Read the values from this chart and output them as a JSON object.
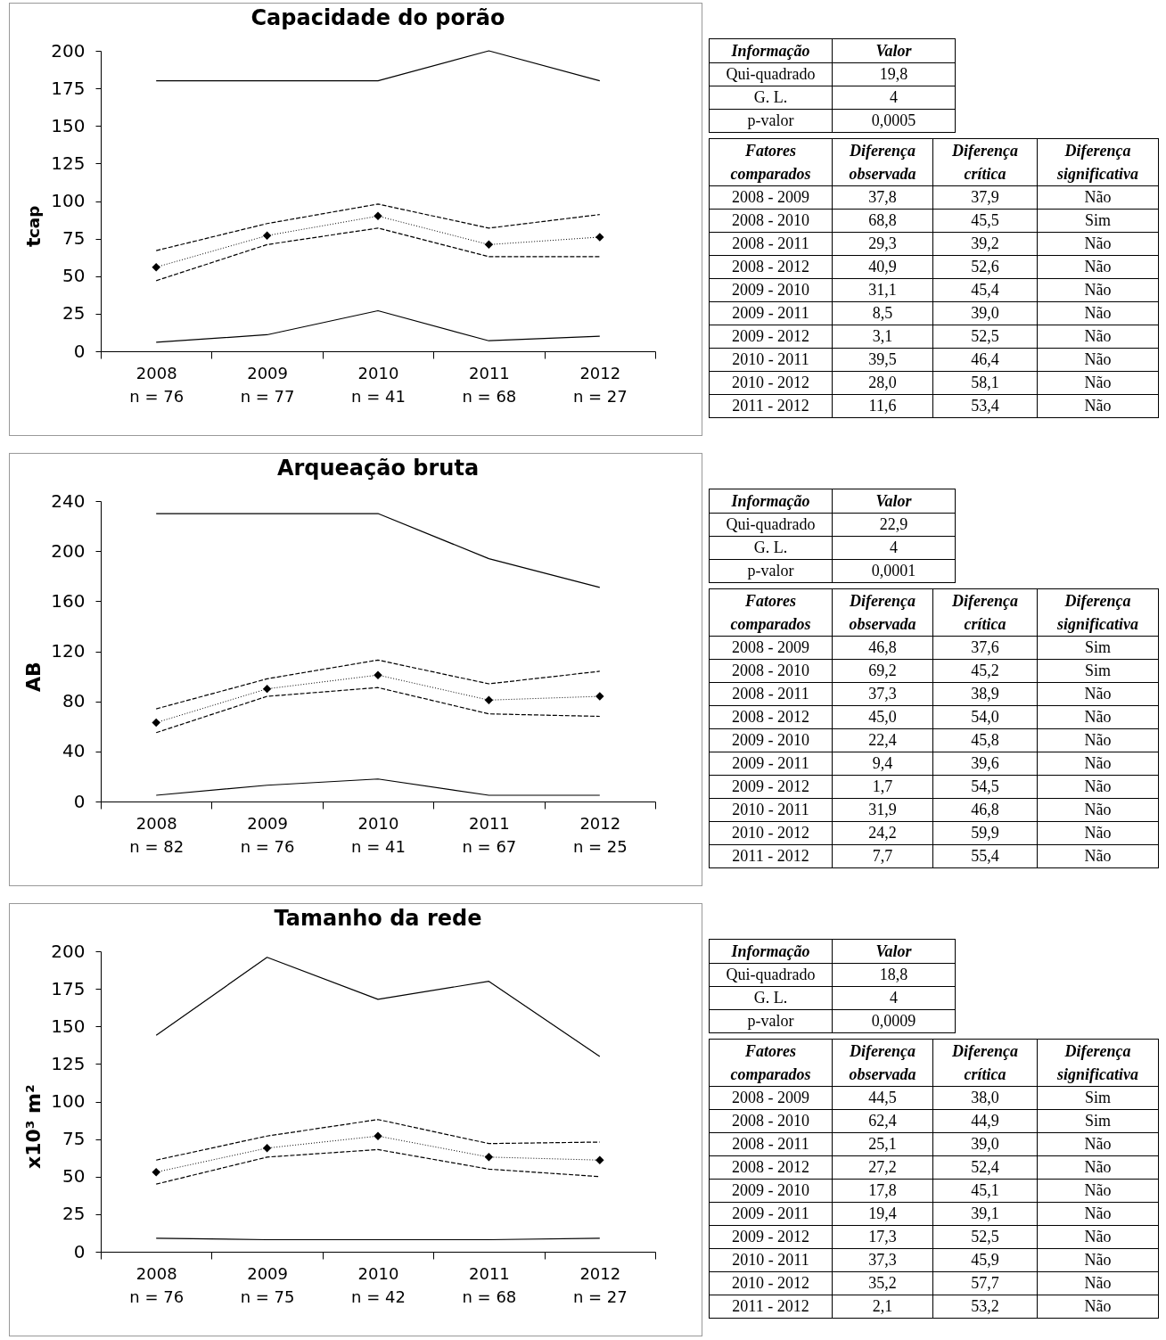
{
  "chart_data": [
    {
      "type": "line",
      "title": "Capacidade do porão",
      "ylabel": "t$_{cap}$",
      "categories": [
        "2008\nn = 76",
        "2009\nn = 77",
        "2010\nn = 41",
        "2011\nn = 68",
        "2012\nn = 27"
      ],
      "ylim": [
        0,
        200
      ],
      "yticks": [
        0,
        25,
        50,
        75,
        100,
        125,
        150,
        175,
        200
      ],
      "series": [
        {
          "color": "#000000",
          "line_style": "solid",
          "values": [
            180,
            180,
            180,
            200,
            180
          ]
        },
        {
          "color": "#000000",
          "line_style": "dashed",
          "values": [
            67,
            85,
            98,
            82,
            91
          ]
        },
        {
          "color": "#000000",
          "line_style": "dotted",
          "marker": "diamond",
          "values": [
            56,
            77,
            90,
            71,
            76
          ]
        },
        {
          "color": "#000000",
          "line_style": "dashed",
          "values": [
            47,
            71,
            82,
            63,
            63
          ]
        },
        {
          "color": "#000000",
          "line_style": "solid",
          "values": [
            6,
            11,
            27,
            7,
            10
          ]
        }
      ]
    },
    {
      "type": "other",
      "categories": [
        "Informação",
        "Valor"
      ],
      "cell_labels": [
        [
          "Qui-quadrado",
          "19,8"
        ],
        [
          "G. L.",
          "4"
        ],
        [
          "p-valor",
          "0,0005"
        ]
      ]
    },
    {
      "type": "other",
      "categories": [
        "Fatores comparados",
        "Diferença observada",
        "Diferença crítica",
        "Diferença significativa"
      ],
      "cell_labels": [
        [
          "2008 - 2009",
          "37,8",
          "37,9",
          "Não"
        ],
        [
          "2008 - 2010",
          "68,8",
          "45,5",
          "Sim"
        ],
        [
          "2008 - 2011",
          "29,3",
          "39,2",
          "Não"
        ],
        [
          "2008 - 2012",
          "40,9",
          "52,6",
          "Não"
        ],
        [
          "2009 - 2010",
          "31,1",
          "45,4",
          "Não"
        ],
        [
          "2009 - 2011",
          "8,5",
          "39,0",
          "Não"
        ],
        [
          "2009 - 2012",
          "3,1",
          "52,5",
          "Não"
        ],
        [
          "2010 - 2011",
          "39,5",
          "46,4",
          "Não"
        ],
        [
          "2010 - 2012",
          "28,0",
          "58,1",
          "Não"
        ],
        [
          "2011 - 2012",
          "11,6",
          "53,4",
          "Não"
        ]
      ]
    },
    {
      "type": "line",
      "title": "Arqueação bruta",
      "ylabel": "AB",
      "categories": [
        "2008\nn = 82",
        "2009\nn = 76",
        "2010\nn = 41",
        "2011\nn = 67",
        "2012\nn = 25"
      ],
      "ylim": [
        0,
        240
      ],
      "yticks": [
        0,
        40,
        80,
        120,
        160,
        200,
        240
      ],
      "series": [
        {
          "color": "#000000",
          "line_style": "solid",
          "values": [
            230,
            230,
            230,
            194,
            171
          ]
        },
        {
          "color": "#000000",
          "line_style": "dashed",
          "values": [
            74,
            98,
            113,
            94,
            104
          ]
        },
        {
          "color": "#000000",
          "line_style": "dotted",
          "marker": "diamond",
          "values": [
            63,
            90,
            101,
            81,
            84
          ]
        },
        {
          "color": "#000000",
          "line_style": "dashed",
          "values": [
            55,
            84,
            91,
            70,
            68
          ]
        },
        {
          "color": "#000000",
          "line_style": "solid",
          "values": [
            5,
            13,
            18,
            5,
            5
          ]
        }
      ]
    },
    {
      "type": "other",
      "categories": [
        "Informação",
        "Valor"
      ],
      "cell_labels": [
        [
          "Qui-quadrado",
          "22,9"
        ],
        [
          "G. L.",
          "4"
        ],
        [
          "p-valor",
          "0,0001"
        ]
      ]
    },
    {
      "type": "other",
      "categories": [
        "Fatores comparados",
        "Diferença observada",
        "Diferença crítica",
        "Diferença significativa"
      ],
      "cell_labels": [
        [
          "2008 - 2009",
          "46,8",
          "37,6",
          "Sim"
        ],
        [
          "2008 - 2010",
          "69,2",
          "45,2",
          "Sim"
        ],
        [
          "2008 - 2011",
          "37,3",
          "38,9",
          "Não"
        ],
        [
          "2008 - 2012",
          "45,0",
          "54,0",
          "Não"
        ],
        [
          "2009 - 2010",
          "22,4",
          "45,8",
          "Não"
        ],
        [
          "2009 - 2011",
          "9,4",
          "39,6",
          "Não"
        ],
        [
          "2009 - 2012",
          "1,7",
          "54,5",
          "Não"
        ],
        [
          "2010 - 2011",
          "31,9",
          "46,8",
          "Não"
        ],
        [
          "2010 - 2012",
          "24,2",
          "59,9",
          "Não"
        ],
        [
          "2011 - 2012",
          "7,7",
          "55,4",
          "Não"
        ]
      ]
    },
    {
      "type": "line",
      "title": "Tamanho da rede",
      "ylabel": "x10³ m²",
      "categories": [
        "2008\nn = 76",
        "2009\nn = 75",
        "2010\nn = 42",
        "2011\nn = 68",
        "2012\nn = 27"
      ],
      "ylim": [
        0,
        200
      ],
      "yticks": [
        0,
        25,
        50,
        75,
        100,
        125,
        150,
        175,
        200
      ],
      "series": [
        {
          "color": "#000000",
          "line_style": "solid",
          "values": [
            144,
            196,
            168,
            180,
            130
          ]
        },
        {
          "color": "#000000",
          "line_style": "dashed",
          "values": [
            61,
            77,
            88,
            72,
            73
          ]
        },
        {
          "color": "#000000",
          "line_style": "dotted",
          "marker": "diamond",
          "values": [
            53,
            69,
            77,
            63,
            61
          ]
        },
        {
          "color": "#000000",
          "line_style": "dashed",
          "values": [
            45,
            63,
            68,
            55,
            50
          ]
        },
        {
          "color": "#000000",
          "line_style": "solid",
          "values": [
            9,
            8,
            8,
            8,
            9
          ]
        }
      ]
    },
    {
      "type": "other",
      "categories": [
        "Informação",
        "Valor"
      ],
      "cell_labels": [
        [
          "Qui-quadrado",
          "18,8"
        ],
        [
          "G. L.",
          "4"
        ],
        [
          "p-valor",
          "0,0009"
        ]
      ]
    },
    {
      "type": "other",
      "categories": [
        "Fatores comparados",
        "Diferença observada",
        "Diferença crítica",
        "Diferença significativa"
      ],
      "cell_labels": [
        [
          "2008 - 2009",
          "44,5",
          "38,0",
          "Sim"
        ],
        [
          "2008 - 2010",
          "62,4",
          "44,9",
          "Sim"
        ],
        [
          "2008 - 2011",
          "25,1",
          "39,0",
          "Não"
        ],
        [
          "2008 - 2012",
          "27,2",
          "52,4",
          "Não"
        ],
        [
          "2009 - 2010",
          "17,8",
          "45,1",
          "Não"
        ],
        [
          "2009 - 2011",
          "19,4",
          "39,1",
          "Não"
        ],
        [
          "2009 - 2012",
          "17,3",
          "52,5",
          "Não"
        ],
        [
          "2010 - 2011",
          "37,3",
          "45,9",
          "Não"
        ],
        [
          "2010 - 2012",
          "35,2",
          "57,7",
          "Não"
        ],
        [
          "2011 - 2012",
          "2,1",
          "53,2",
          "Não"
        ]
      ]
    }
  ]
}
